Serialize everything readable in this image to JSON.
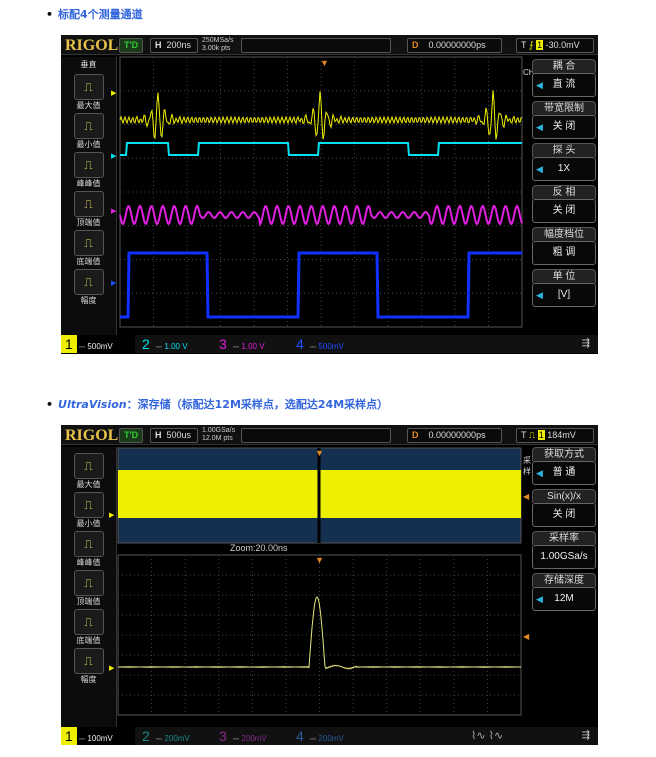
{
  "section1": {
    "title": "标配4个测量通道"
  },
  "section2": {
    "brand": "UltraVision",
    "title": "：深存储（标配达12M采样点，选配达24M采样点）"
  },
  "scope1": {
    "logo": "RIGOL",
    "run_state": "T'D",
    "h_label": "H",
    "timebase": "200ns",
    "sample_rate": "250MSa/s",
    "points": "3.00k pts",
    "d_label": "D",
    "delay": "0.00000000ps",
    "t_label": "T",
    "trigger_level": "-30.0mV",
    "left_header": "垂直",
    "measures": [
      "最大值",
      "最小值",
      "峰峰值",
      "顶端值",
      "底端值",
      "幅度"
    ],
    "side_label": "CH1",
    "menu": [
      {
        "head": "耦 合",
        "value": "直 流",
        "arrow": true
      },
      {
        "head": "带宽限制",
        "value": "关 闭",
        "arrow": true
      },
      {
        "head": "探 头",
        "value": "1X",
        "arrow": true
      },
      {
        "head": "反 相",
        "value": "关 闭",
        "arrow": false
      },
      {
        "head": "幅度档位",
        "value": "粗 调",
        "arrow": false
      },
      {
        "head": "单 位",
        "value": "[V]",
        "arrow": true
      }
    ],
    "channels": [
      {
        "n": "1",
        "scale": "500mV",
        "color": "#f0f000"
      },
      {
        "n": "2",
        "scale": "1.00 V",
        "color": "#00e0f0"
      },
      {
        "n": "3",
        "scale": "1.00 V",
        "color": "#e020e0"
      },
      {
        "n": "4",
        "scale": "500mV",
        "color": "#2050ff"
      }
    ]
  },
  "scope2": {
    "logo": "RIGOL",
    "run_state": "T'D",
    "h_label": "H",
    "timebase": "500us",
    "sample_rate": "1.00GSa/s",
    "points": "12.0M pts",
    "d_label": "D",
    "delay": "0.00000000ps",
    "t_label": "T",
    "trigger_level": "184mV",
    "zoom_label": "Zoom:20.00ns",
    "left_header": "",
    "measures": [
      "最大值",
      "最小值",
      "峰峰值",
      "顶端值",
      "底端值",
      "幅度"
    ],
    "side_label": "采 样",
    "menu": [
      {
        "head": "获取方式",
        "value": "普 通",
        "arrow": true
      },
      {
        "head": "Sin(x)/x",
        "value": "关 闭",
        "arrow": false
      },
      {
        "head": "采样率",
        "value": "1.00GSa/s",
        "arrow": false
      },
      {
        "head": "存储深度",
        "value": "12M",
        "arrow": true
      }
    ],
    "channels": [
      {
        "n": "1",
        "scale": "100mV",
        "color": "#f0f000"
      },
      {
        "n": "2",
        "scale": "200mV",
        "color": "#1a8a8a"
      },
      {
        "n": "3",
        "scale": "200mV",
        "color": "#8a2a8a"
      },
      {
        "n": "4",
        "scale": "200mV",
        "color": "#2a5a9a"
      }
    ]
  },
  "icons": {
    "usb": "usb-icon",
    "trigger": "trigger-marker-icon"
  }
}
